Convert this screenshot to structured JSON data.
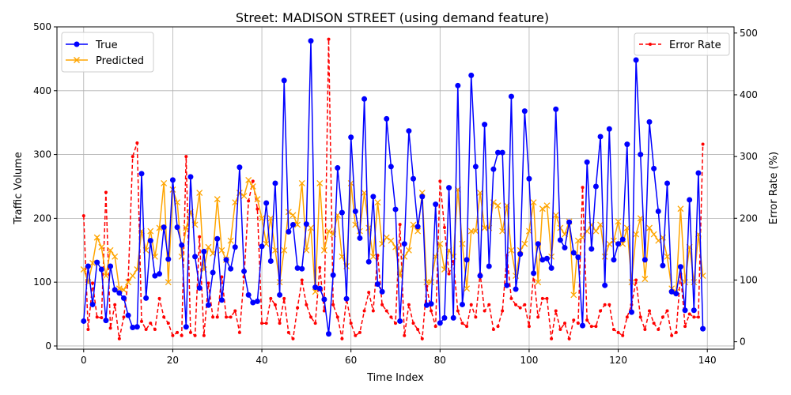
{
  "chart_data": {
    "type": "line",
    "title": "Street: MADISON STREET (using demand feature)",
    "xlabel": "Time Index",
    "ylabel": "Traffic Volume",
    "y2label": "Error Rate (%)",
    "xlim": [
      -6,
      146
    ],
    "ylim": [
      -5,
      500
    ],
    "y2lim": [
      -12,
      510
    ],
    "xticks": [
      0,
      20,
      40,
      60,
      80,
      100,
      120,
      140
    ],
    "yticks": [
      0,
      100,
      200,
      300,
      400,
      500
    ],
    "y2ticks": [
      0,
      100,
      200,
      300,
      400,
      500
    ],
    "grid": true,
    "legend_left": "upper-left",
    "legend_right": "upper-right",
    "colors": {
      "true": "#0000ff",
      "predicted": "#ffa500",
      "error": "#ff0000"
    },
    "x": [
      0,
      1,
      2,
      3,
      4,
      5,
      6,
      7,
      8,
      9,
      10,
      11,
      12,
      13,
      14,
      15,
      16,
      17,
      18,
      19,
      20,
      21,
      22,
      23,
      24,
      25,
      26,
      27,
      28,
      29,
      30,
      31,
      32,
      33,
      34,
      35,
      36,
      37,
      38,
      39,
      40,
      41,
      42,
      43,
      44,
      45,
      46,
      47,
      48,
      49,
      50,
      51,
      52,
      53,
      54,
      55,
      56,
      57,
      58,
      59,
      60,
      61,
      62,
      63,
      64,
      65,
      66,
      67,
      68,
      69,
      70,
      71,
      72,
      73,
      74,
      75,
      76,
      77,
      78,
      79,
      80,
      81,
      82,
      83,
      84,
      85,
      86,
      87,
      88,
      89,
      90,
      91,
      92,
      93,
      94,
      95,
      96,
      97,
      98,
      99,
      100,
      101,
      102,
      103,
      104,
      105,
      106,
      107,
      108,
      109,
      110,
      111,
      112,
      113,
      114,
      115,
      116,
      117,
      118,
      119,
      120,
      121,
      122,
      123,
      124,
      125,
      126,
      127,
      128,
      129,
      130,
      131,
      132,
      133,
      134,
      135,
      136,
      137,
      138,
      139
    ],
    "series": [
      {
        "name": "True",
        "axis": "left",
        "color": "#0000ff",
        "style": "solid",
        "marker": "circle",
        "values": [
          39,
          125,
          65,
          131,
          120,
          40,
          125,
          88,
          83,
          75,
          48,
          29,
          30,
          270,
          75,
          165,
          110,
          113,
          186,
          136,
          260,
          186,
          158,
          30,
          265,
          140,
          91,
          148,
          64,
          115,
          168,
          72,
          135,
          121,
          155,
          280,
          117,
          80,
          68,
          70,
          156,
          224,
          133,
          255,
          80,
          416,
          179,
          190,
          122,
          121,
          191,
          478,
          92,
          90,
          73,
          19,
          111,
          279,
          209,
          74,
          327,
          211,
          169,
          387,
          132,
          234,
          97,
          85,
          356,
          281,
          214,
          39,
          160,
          337,
          262,
          187,
          234,
          64,
          66,
          222,
          36,
          44,
          248,
          44,
          408,
          65,
          135,
          424,
          281,
          110,
          347,
          125,
          277,
          303,
          303,
          95,
          391,
          89,
          144,
          368,
          262,
          114,
          160,
          135,
          137,
          122,
          371,
          166,
          154,
          194,
          146,
          139,
          32,
          288,
          152,
          250,
          328,
          95,
          340,
          135,
          160,
          167,
          316,
          53,
          448,
          300,
          135,
          351,
          278,
          211,
          126,
          255,
          85,
          82,
          124,
          56,
          229,
          56,
          271,
          27
        ]
      },
      {
        "name": "Predicted",
        "axis": "left",
        "color": "#ffa500",
        "style": "solid",
        "marker": "x",
        "values": [
          120,
          100,
          130,
          170,
          155,
          110,
          150,
          140,
          90,
          88,
          100,
          110,
          120,
          180,
          150,
          180,
          140,
          185,
          255,
          100,
          245,
          225,
          140,
          185,
          210,
          190,
          240,
          120,
          155,
          145,
          230,
          150,
          135,
          165,
          225,
          240,
          235,
          260,
          250,
          230,
          200,
          160,
          200,
          150,
          100,
          150,
          210,
          205,
          190,
          255,
          150,
          185,
          85,
          255,
          150,
          180,
          175,
          205,
          140,
          125,
          255,
          190,
          180,
          240,
          185,
          140,
          225,
          160,
          170,
          165,
          155,
          110,
          140,
          150,
          190,
          180,
          240,
          100,
          100,
          140,
          160,
          120,
          150,
          140,
          245,
          160,
          90,
          180,
          180,
          240,
          185,
          185,
          225,
          220,
          180,
          220,
          150,
          110,
          150,
          160,
          180,
          225,
          100,
          215,
          220,
          140,
          205,
          185,
          175,
          195,
          80,
          165,
          170,
          180,
          190,
          180,
          190,
          140,
          160,
          165,
          195,
          160,
          185,
          100,
          175,
          200,
          105,
          185,
          175,
          165,
          170,
          140,
          90,
          85,
          215,
          100,
          155,
          100,
          175,
          110
        ]
      },
      {
        "name": "Error Rate",
        "axis": "right",
        "color": "#ff0000",
        "style": "dashed",
        "marker": "dot",
        "values": [
          204,
          20,
          95,
          40,
          39,
          242,
          22,
          60,
          5,
          40,
          100,
          300,
          322,
          33,
          20,
          30,
          20,
          70,
          40,
          30,
          10,
          15,
          10,
          300,
          15,
          10,
          170,
          10,
          95,
          40,
          40,
          105,
          40,
          40,
          50,
          15,
          105,
          228,
          260,
          215,
          30,
          30,
          70,
          60,
          30,
          70,
          15,
          5,
          55,
          100,
          60,
          40,
          30,
          120,
          50,
          490,
          60,
          40,
          5,
          70,
          30,
          10,
          15,
          50,
          80,
          50,
          140,
          60,
          50,
          40,
          30,
          190,
          10,
          60,
          30,
          20,
          5,
          90,
          50,
          25,
          260,
          185,
          110,
          130,
          50,
          30,
          25,
          60,
          40,
          110,
          50,
          60,
          20,
          25,
          50,
          140,
          70,
          60,
          55,
          60,
          25,
          110,
          40,
          70,
          70,
          5,
          50,
          20,
          30,
          5,
          35,
          30,
          250,
          35,
          25,
          25,
          50,
          60,
          60,
          20,
          15,
          10,
          40,
          60,
          100,
          40,
          20,
          50,
          30,
          20,
          40,
          50,
          10,
          15,
          110,
          25,
          45,
          40,
          40,
          320
        ]
      }
    ]
  }
}
